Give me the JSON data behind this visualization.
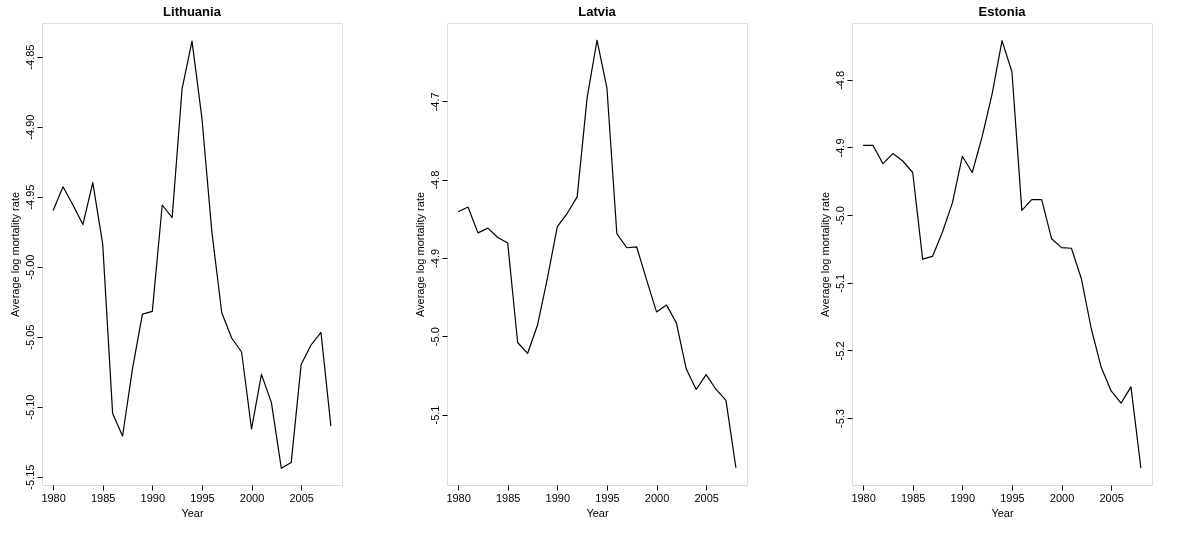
{
  "chart_data": [
    {
      "type": "line",
      "title": "Lithuania",
      "xlabel": "Year",
      "ylabel": "Average log mortality rate",
      "grid": false,
      "x": [
        1980,
        1981,
        1982,
        1983,
        1984,
        1985,
        1986,
        1987,
        1988,
        1989,
        1990,
        1991,
        1992,
        1993,
        1994,
        1995,
        1996,
        1997,
        1998,
        1999,
        2000,
        2001,
        2002,
        2003,
        2004,
        2005,
        2006,
        2007,
        2008
      ],
      "series": [
        {
          "color": "#000000",
          "values": [
            -4.96,
            -4.943,
            -4.956,
            -4.97,
            -4.94,
            -4.984,
            -5.105,
            -5.121,
            -5.073,
            -5.034,
            -5.032,
            -4.956,
            -4.965,
            -4.873,
            -4.839,
            -4.894,
            -4.975,
            -5.033,
            -5.051,
            -5.061,
            -5.116,
            -5.077,
            -5.097,
            -5.144,
            -5.14,
            -5.07,
            -5.056,
            -5.047,
            -5.114
          ]
        }
      ],
      "xlim": [
        1978.88,
        2009.12
      ],
      "xticks": [
        1980,
        1985,
        1990,
        1995,
        2000,
        2005
      ],
      "ylim": [
        -5.156,
        -4.826
      ],
      "yticks": [
        -4.85,
        {
          "value": -4.9,
          "label": "-4.90"
        },
        -4.95,
        {
          "value": -5.0,
          "label": "-5.00"
        },
        -5.05,
        {
          "value": -5.1,
          "label": "-5.10"
        },
        -5.15
      ]
    },
    {
      "type": "line",
      "title": "Latvia",
      "xlabel": "Year",
      "ylabel": "Average log mortality rate",
      "grid": false,
      "x": [
        1980,
        1981,
        1982,
        1983,
        1984,
        1985,
        1986,
        1987,
        1988,
        1989,
        1990,
        1991,
        1992,
        1993,
        1994,
        1995,
        1996,
        1997,
        1998,
        1999,
        2000,
        2001,
        2002,
        2003,
        2004,
        2005,
        2006,
        2007,
        2008
      ],
      "series": [
        {
          "color": "#000000",
          "values": [
            -4.841,
            -4.835,
            -4.868,
            -4.862,
            -4.874,
            -4.881,
            -5.008,
            -5.022,
            -4.986,
            -4.926,
            -4.86,
            -4.843,
            -4.822,
            -4.696,
            -4.622,
            -4.683,
            -4.869,
            -4.887,
            -4.886,
            -4.928,
            -4.969,
            -4.96,
            -4.983,
            -5.042,
            -5.068,
            -5.049,
            -5.068,
            -5.082,
            -5.168
          ]
        }
      ],
      "xlim": [
        1978.88,
        2009.12
      ],
      "xticks": [
        1980,
        1985,
        1990,
        1995,
        2000,
        2005
      ],
      "ylim": [
        -5.19,
        -4.6
      ],
      "yticks": [
        -4.7,
        -4.8,
        -4.9,
        {
          "value": -5.0,
          "label": "-5.0"
        },
        -5.1
      ]
    },
    {
      "type": "line",
      "title": "Estonia",
      "xlabel": "Year",
      "ylabel": "Average log mortality rate",
      "grid": false,
      "x": [
        1980,
        1981,
        1982,
        1983,
        1984,
        1985,
        1986,
        1987,
        1988,
        1989,
        1990,
        1991,
        1992,
        1993,
        1994,
        1995,
        1996,
        1997,
        1998,
        1999,
        2000,
        2001,
        2002,
        2003,
        2004,
        2005,
        2006,
        2007,
        2008
      ],
      "series": [
        {
          "color": "#000000",
          "values": [
            -4.897,
            -4.897,
            -4.924,
            -4.909,
            -4.92,
            -4.937,
            -5.065,
            -5.061,
            -5.025,
            -4.982,
            -4.913,
            -4.937,
            -4.884,
            -4.821,
            -4.742,
            -4.788,
            -4.993,
            -4.977,
            -4.977,
            -5.035,
            -5.048,
            -5.049,
            -5.094,
            -5.168,
            -5.225,
            -5.26,
            -5.278,
            -5.254,
            -5.374
          ]
        }
      ],
      "xlim": [
        1978.88,
        2009.12
      ],
      "xticks": [
        1980,
        1985,
        1990,
        1995,
        2000,
        2005
      ],
      "ylim": [
        -5.399,
        -4.716
      ],
      "yticks": [
        -4.8,
        -4.9,
        {
          "value": -5.0,
          "label": "-5.0"
        },
        -5.1,
        -5.2,
        -5.3
      ]
    }
  ]
}
